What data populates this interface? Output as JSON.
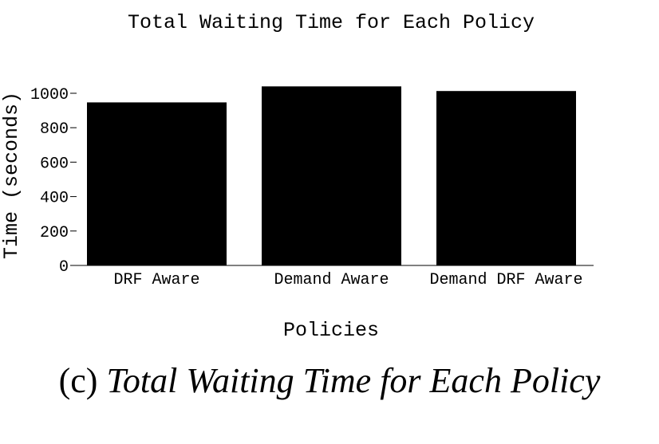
{
  "chart_data": {
    "type": "bar",
    "title": "Total Waiting Time for Each Policy",
    "xlabel": "Policies",
    "ylabel": "Time (seconds)",
    "categories": [
      "DRF Aware",
      "Demand Aware",
      "Demand DRF Aware"
    ],
    "values": [
      947,
      1040,
      1013
    ],
    "ylim": [
      0,
      1000
    ],
    "yticks": [
      0,
      200,
      400,
      600,
      800,
      1000
    ],
    "grid": false,
    "bar_color": "#000000"
  },
  "caption": {
    "prefix": "(c)",
    "text": "Total Waiting Time for Each Policy"
  }
}
